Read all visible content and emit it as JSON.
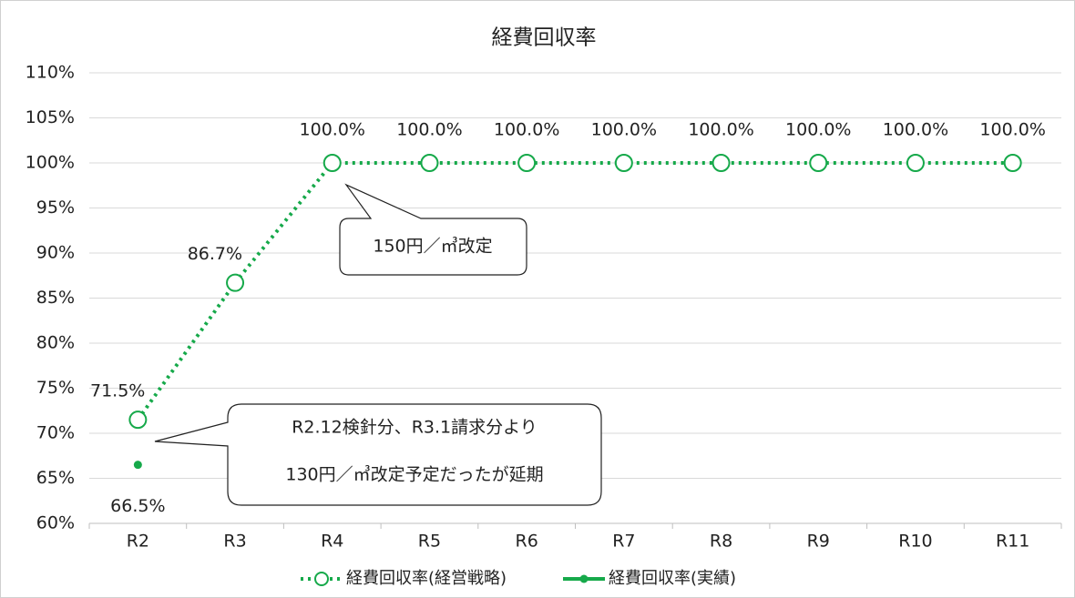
{
  "chart_data": {
    "type": "line",
    "title": "経費回収率",
    "categories": [
      "R2",
      "R3",
      "R4",
      "R5",
      "R6",
      "R7",
      "R8",
      "R9",
      "R10",
      "R11"
    ],
    "series": [
      {
        "name": "経費回収率(経営戦略)",
        "color": "#16a94a",
        "line_style": "dotted",
        "marker": "open-circle",
        "values": [
          71.5,
          86.7,
          100,
          100,
          100,
          100,
          100,
          100,
          100,
          100
        ],
        "value_labels": [
          "71.5%",
          "86.7%",
          "100.0%",
          "100.0%",
          "100.0%",
          "100.0%",
          "100.0%",
          "100.0%",
          "100.0%",
          "100.0%"
        ]
      },
      {
        "name": "経費回収率(実績)",
        "color": "#16a94a",
        "line_style": "solid",
        "marker": "dot",
        "values": [
          66.5,
          null,
          null,
          null,
          null,
          null,
          null,
          null,
          null,
          null
        ],
        "value_labels": [
          "66.5%",
          null,
          null,
          null,
          null,
          null,
          null,
          null,
          null,
          null
        ]
      }
    ],
    "ylim": [
      60,
      110
    ],
    "yticks": [
      {
        "value": 60,
        "label": "60%"
      },
      {
        "value": 65,
        "label": "65%"
      },
      {
        "value": 70,
        "label": "70%"
      },
      {
        "value": 75,
        "label": "75%"
      },
      {
        "value": 80,
        "label": "80%"
      },
      {
        "value": 85,
        "label": "85%"
      },
      {
        "value": 90,
        "label": "90%"
      },
      {
        "value": 95,
        "label": "95%"
      },
      {
        "value": 100,
        "label": "100%"
      },
      {
        "value": 105,
        "label": "105%"
      },
      {
        "value": 110,
        "label": "110%"
      }
    ],
    "grid": true,
    "legend": "bottom",
    "annotations": [
      {
        "lines": [
          "150円／㎥改定"
        ]
      },
      {
        "lines": [
          "R2.12検針分、R3.1請求分より",
          "130円／㎥改定予定だったが延期"
        ]
      }
    ]
  }
}
